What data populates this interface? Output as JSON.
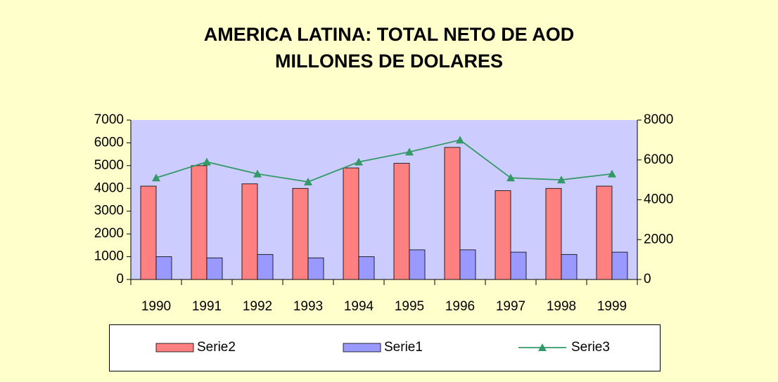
{
  "chart_data": {
    "type": "bar",
    "title": "AMERICA LATINA: TOTAL NETO DE AOD MILLONES DE DOLARES",
    "categories": [
      "1990",
      "1991",
      "1992",
      "1993",
      "1994",
      "1995",
      "1996",
      "1997",
      "1998",
      "1999"
    ],
    "series": [
      {
        "name": "Serie2",
        "type": "bar",
        "color": "#ff8080",
        "values": [
          4100,
          5000,
          4200,
          4000,
          4900,
          5100,
          5800,
          3900,
          4000,
          4100
        ]
      },
      {
        "name": "Serie1",
        "type": "bar",
        "color": "#9999ff",
        "values": [
          1000,
          950,
          1100,
          950,
          1000,
          1300,
          1300,
          1200,
          1100,
          1200
        ]
      },
      {
        "name": "Serie3",
        "type": "line",
        "axis": "y2",
        "color": "#339966",
        "values": [
          5100,
          5900,
          5300,
          4900,
          5900,
          6400,
          7000,
          5100,
          5000,
          5300
        ]
      }
    ],
    "ylim": [
      0,
      7000
    ],
    "yticks": [
      0,
      1000,
      2000,
      3000,
      4000,
      5000,
      6000,
      7000
    ],
    "y2lim": [
      0,
      8000
    ],
    "y2ticks": [
      0,
      2000,
      4000,
      6000,
      8000
    ],
    "legend": "bottom"
  }
}
